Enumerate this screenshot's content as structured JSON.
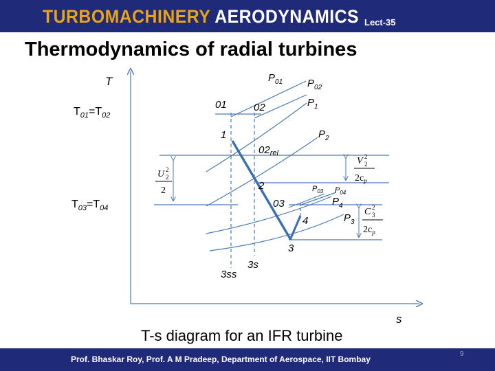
{
  "header": {
    "title_part1": "TURBOMACHINERY",
    "title_part2": "AERODYNAMICS",
    "lecture": "Lect-35"
  },
  "slide": {
    "title": "Thermodynamics of radial turbines",
    "caption": "T-s diagram for an IFR turbine"
  },
  "diagram": {
    "axis_y": "T",
    "axis_x": "s",
    "t01_lhs": "T",
    "t01_sub1": "01",
    "t01_mid": "=T",
    "t01_sub2": "02",
    "t03_lhs": "T",
    "t03_sub1": "03",
    "t03_mid": "=T",
    "t03_sub2": "04",
    "pt_01": "01",
    "pt_02": "02",
    "pt_1": "1",
    "pt_02rel": "02",
    "pt_02rel_sub": "rel",
    "pt_2": "2",
    "pt_03": "03",
    "pt_4": "4",
    "pt_3": "3",
    "pt_3s": "3s",
    "pt_3ss": "3ss",
    "p01": "P",
    "p01_sub": "01",
    "p02": "P",
    "p02_sub": "02",
    "p1": "P",
    "p1_sub": "1",
    "p2": "P",
    "p2_sub": "2",
    "p03": "P",
    "p03_sub": "03",
    "p04": "P",
    "p04_sub": "04",
    "p4": "P",
    "p4_sub": "4",
    "p3": "P",
    "p3_sub": "3",
    "eq_u_num": "U",
    "eq_u_sub": "2",
    "eq_u_sup": "2",
    "eq_u_den": "2",
    "eq_v_num": "V",
    "eq_v_sub": "2",
    "eq_v_sup": "2",
    "eq_v_den": "2c",
    "eq_v_den_sub": "p",
    "eq_c_num": "C",
    "eq_c_sub": "3",
    "eq_c_sup": "2",
    "eq_c_den": "2c",
    "eq_c_den_sub": "p"
  },
  "footer": {
    "credits": "Prof. Bhaskar Roy, Prof. A M Pradeep, Department of Aerospace, IIT Bombay",
    "page": "9"
  },
  "colors": {
    "header_bg": "#1f2a78",
    "title_accent": "#e8a317",
    "line_blue": "#4a7ab5",
    "process_blue": "#3d6fb0"
  }
}
